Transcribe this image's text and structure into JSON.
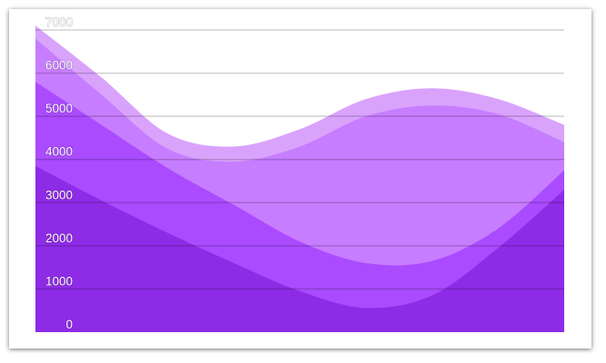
{
  "chart_data": {
    "type": "area",
    "stacked": false,
    "ylim": [
      0,
      7000
    ],
    "yticks": [
      "0",
      "1000",
      "2000",
      "3000",
      "4000",
      "5000",
      "6000",
      "7000"
    ],
    "grid": true,
    "legend": "none",
    "x": [
      0,
      1,
      2,
      3,
      4,
      5,
      6,
      7,
      8
    ],
    "series": [
      {
        "color": "#d9a3fc",
        "values": [
          7100,
          5900,
          4600,
          4300,
          4700,
          5400,
          5650,
          5400,
          4800
        ]
      },
      {
        "color": "#c77dff",
        "values": [
          6800,
          5500,
          4250,
          3950,
          4300,
          5000,
          5250,
          5050,
          4400
        ]
      },
      {
        "color": "#aa4bff",
        "values": [
          5800,
          4800,
          3800,
          2950,
          2100,
          1600,
          1650,
          2400,
          3750
        ]
      },
      {
        "color": "#8e2be6",
        "values": [
          3850,
          3050,
          2300,
          1600,
          950,
          560,
          850,
          1950,
          3300
        ]
      }
    ]
  }
}
